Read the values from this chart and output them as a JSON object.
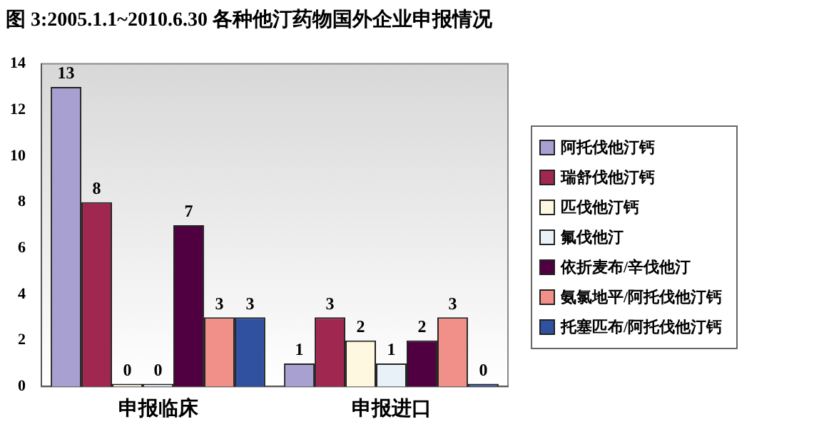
{
  "chart_data": {
    "type": "bar",
    "title": "图 3:2005.1.1~2010.6.30 各种他汀药物国外企业申报情况",
    "categories": [
      "申报临床",
      "申报进口"
    ],
    "series": [
      {
        "name": "阿托伐他汀钙",
        "color": "#a8a0d0",
        "values": [
          13,
          1
        ]
      },
      {
        "name": "瑞舒伐他汀钙",
        "color": "#a02850",
        "values": [
          8,
          3
        ]
      },
      {
        "name": "匹伐他汀钙",
        "color": "#fff8e0",
        "values": [
          0,
          2
        ]
      },
      {
        "name": "氟伐他汀",
        "color": "#e8f0f8",
        "values": [
          0,
          1
        ]
      },
      {
        "name": "依折麦布/辛伐他汀",
        "color": "#500040",
        "values": [
          7,
          2
        ]
      },
      {
        "name": "氨氯地平/阿托伐他汀钙",
        "color": "#f09088",
        "values": [
          3,
          3
        ]
      },
      {
        "name": "托塞匹布/阿托伐他汀钙",
        "color": "#3050a0",
        "values": [
          3,
          0
        ]
      }
    ],
    "ylim": [
      0,
      14
    ],
    "yticks": [
      0,
      2,
      4,
      6,
      8,
      10,
      12,
      14
    ],
    "grid": false,
    "legend": "right",
    "data_labels": true
  }
}
